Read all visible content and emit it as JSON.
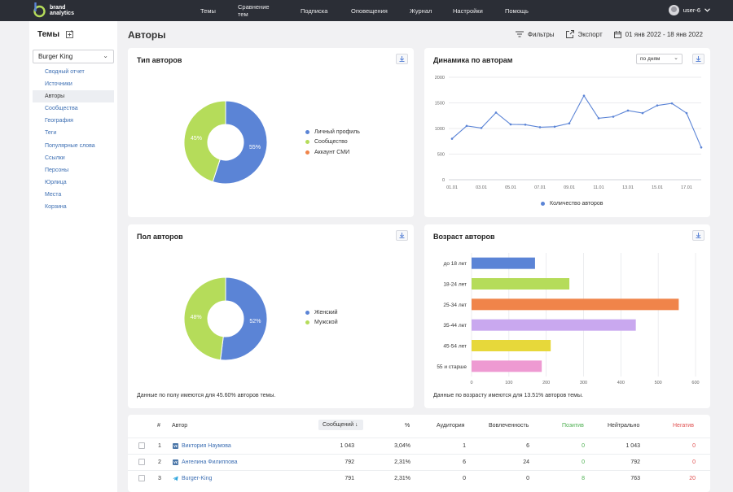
{
  "nav": {
    "brand_line1": "brand",
    "brand_line2": "analytics",
    "items": [
      "Темы",
      "Сравнение тем",
      "Подписка",
      "Оповещения",
      "Журнал",
      "Настройки",
      "Помощь"
    ],
    "user": "user-6"
  },
  "sidebar": {
    "title": "Темы",
    "theme_selected": "Burger King",
    "items": [
      "Сводный отчет",
      "Источники",
      "Авторы",
      "Сообщества",
      "География",
      "Теги",
      "Популярные слова",
      "Ссылки",
      "Персоны",
      "Юрлица",
      "Места",
      "Корзина"
    ],
    "active_index": 2
  },
  "header": {
    "title": "Авторы",
    "filters": "Фильтры",
    "export": "Экспорт",
    "date_range": "01 янв 2022 - 18 янв 2022"
  },
  "colors": {
    "blue": "#5b84d6",
    "green": "#b5dc5a",
    "orange": "#f0844a",
    "purple": "#c9a8ef",
    "yellow": "#e7d83a",
    "pink": "#ee9ad2",
    "positive": "#4caf50",
    "negative": "#e05050"
  },
  "author_type": {
    "title": "Тип авторов",
    "legend": [
      "Личный профиль",
      "Сообщество",
      "Аккаунт СМИ"
    ],
    "labels": [
      "55%",
      "45%"
    ]
  },
  "author_gender": {
    "title": "Пол авторов",
    "legend": [
      "Женский",
      "Мужской"
    ],
    "labels": [
      "52%",
      "48%"
    ],
    "footnote": "Данные по полу имеются для 45.60% авторов темы."
  },
  "author_age": {
    "title": "Возраст авторов",
    "footnote": "Данные по возрасту имеются для 13.51% авторов темы."
  },
  "dynamics": {
    "title": "Динамика по авторам",
    "granularity": "по дням",
    "legend": "Количество авторов"
  },
  "chart_data": [
    {
      "type": "pie",
      "title": "Тип авторов",
      "categories": [
        "Личный профиль",
        "Сообщество",
        "Аккаунт СМИ"
      ],
      "values": [
        55,
        45,
        0
      ],
      "colors": [
        "#5b84d6",
        "#b5dc5a",
        "#f0844a"
      ]
    },
    {
      "type": "pie",
      "title": "Пол авторов",
      "categories": [
        "Женский",
        "Мужской"
      ],
      "values": [
        52,
        48
      ],
      "colors": [
        "#5b84d6",
        "#b5dc5a"
      ]
    },
    {
      "type": "line",
      "title": "Динамика по авторам",
      "x": [
        "01.01",
        "02.01",
        "03.01",
        "04.01",
        "05.01",
        "06.01",
        "07.01",
        "08.01",
        "09.01",
        "10.01",
        "11.01",
        "12.01",
        "13.01",
        "14.01",
        "15.01",
        "16.01",
        "17.01",
        "18.01"
      ],
      "xticks": [
        "01.01",
        "03.01",
        "05.01",
        "07.01",
        "09.01",
        "11.01",
        "13.01",
        "15.01",
        "17.01"
      ],
      "series": [
        {
          "name": "Количество авторов",
          "values": [
            800,
            1050,
            1010,
            1310,
            1080,
            1075,
            1025,
            1035,
            1100,
            1640,
            1200,
            1230,
            1350,
            1300,
            1450,
            1490,
            1300,
            630
          ]
        }
      ],
      "ylim": [
        0,
        2000
      ],
      "yticks": [
        0,
        500,
        1000,
        1500,
        2000
      ],
      "grid": true,
      "legend": "bottom"
    },
    {
      "type": "bar",
      "orientation": "horizontal",
      "title": "Возраст авторов",
      "categories": [
        "до 18 лет",
        "18-24 лет",
        "25-34 лет",
        "35-44 лет",
        "45-54 лет",
        "55 и старше"
      ],
      "values": [
        170,
        262,
        555,
        440,
        212,
        188
      ],
      "colors": [
        "#5b84d6",
        "#b5dc5a",
        "#f0844a",
        "#c9a8ef",
        "#e7d83a",
        "#ee9ad2"
      ],
      "xlim": [
        0,
        600
      ],
      "xticks": [
        0,
        100,
        200,
        300,
        400,
        500,
        600
      ],
      "grid": true
    }
  ],
  "table": {
    "headers": {
      "num": "#",
      "author": "Автор",
      "messages": "Сообщений ↓",
      "percent": "%",
      "audience": "Аудитория",
      "engagement": "Вовлеченность",
      "positive": "Позитив",
      "neutral": "Нейтрально",
      "negative": "Негатив"
    },
    "rows": [
      {
        "n": "1",
        "author": "Виктория Наумова",
        "source": "vk",
        "messages": "1 043",
        "percent": "3,04%",
        "audience": "1",
        "engagement": "6",
        "positive": "0",
        "neutral": "1 043",
        "negative": "0"
      },
      {
        "n": "2",
        "author": "Ангелина Филиппова",
        "source": "vk",
        "messages": "792",
        "percent": "2,31%",
        "audience": "6",
        "engagement": "24",
        "positive": "0",
        "neutral": "792",
        "negative": "0"
      },
      {
        "n": "3",
        "author": "Burger-King",
        "source": "telegram",
        "messages": "791",
        "percent": "2,31%",
        "audience": "0",
        "engagement": "0",
        "positive": "8",
        "neutral": "763",
        "negative": "20"
      }
    ]
  }
}
